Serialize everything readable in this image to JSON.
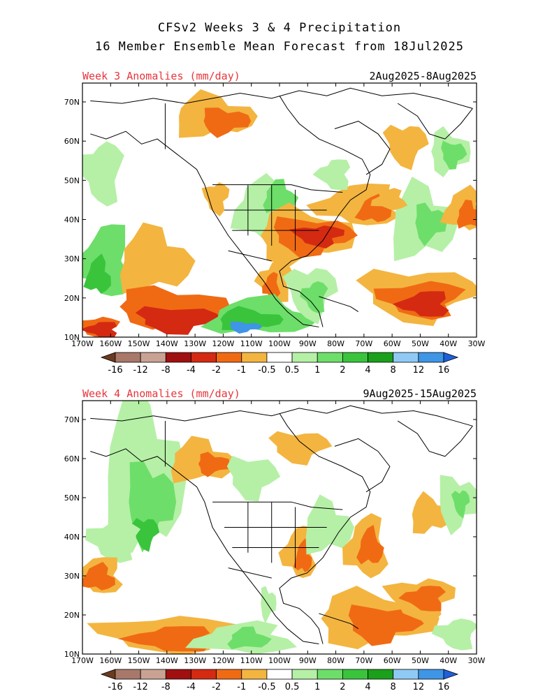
{
  "title": {
    "line1": "CFSv2 Weeks 3 & 4 Precipitation",
    "line2": "16 Member Ensemble Mean Forecast from 18Jul2025"
  },
  "panels": [
    {
      "heading": "Week 3 Anomalies (mm/day)",
      "dates": "2Aug2025-8Aug2025"
    },
    {
      "heading": "Week 4 Anomalies (mm/day)",
      "dates": "9Aug2025-15Aug2025"
    }
  ],
  "axes": {
    "lon_labels": [
      "170W",
      "160W",
      "150W",
      "140W",
      "130W",
      "120W",
      "110W",
      "100W",
      "90W",
      "80W",
      "70W",
      "60W",
      "50W",
      "40W",
      "30W"
    ],
    "lat_labels": [
      "70N",
      "60N",
      "50N",
      "40N",
      "30N",
      "20N",
      "10N"
    ]
  },
  "colorbar": {
    "labels": [
      "-16",
      "-12",
      "-8",
      "-4",
      "-2",
      "-1",
      "-0.5",
      "0.5",
      "1",
      "2",
      "4",
      "8",
      "12",
      "16"
    ],
    "colors": [
      "#6b3b1f",
      "#a8786a",
      "#c9a294",
      "#a01010",
      "#d42a12",
      "#f06a14",
      "#f3b540",
      "#ffffff",
      "#b5f0a6",
      "#6dde6a",
      "#39c43c",
      "#1aa01a",
      "#8fcaf5",
      "#3f95e6",
      "#1f5fd8"
    ]
  }
}
